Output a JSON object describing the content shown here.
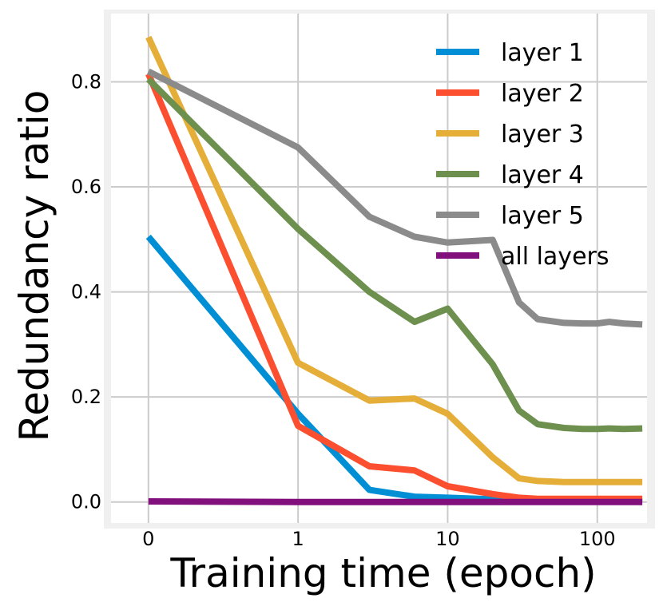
{
  "chart_data": {
    "type": "line",
    "title": "",
    "xlabel": "Training time (epoch)",
    "ylabel": "Redundancy ratio",
    "xscale": "symlog",
    "xlim": [
      -0.25,
      215
    ],
    "ylim": [
      -0.04,
      0.93
    ],
    "xticks": [
      {
        "value": 0,
        "label": "0"
      },
      {
        "value": 1,
        "label": "1"
      },
      {
        "value": 10,
        "label": "10"
      },
      {
        "value": 100,
        "label": "100"
      }
    ],
    "yticks": [
      {
        "value": 0.0,
        "label": "0.0"
      },
      {
        "value": 0.2,
        "label": "0.2"
      },
      {
        "value": 0.4,
        "label": "0.4"
      },
      {
        "value": 0.6,
        "label": "0.6"
      },
      {
        "value": 0.8,
        "label": "0.8"
      }
    ],
    "grid": true,
    "legend_position": "top-right",
    "series": [
      {
        "name": "layer 1",
        "color": "#008fd5",
        "x": [
          0,
          1,
          3,
          6,
          10,
          20,
          30,
          40,
          60,
          80,
          100,
          120,
          150,
          200
        ],
        "y": [
          0.505,
          0.168,
          0.023,
          0.01,
          0.008,
          0.005,
          0.003,
          0.003,
          0.003,
          0.003,
          0.003,
          0.003,
          0.003,
          0.003
        ]
      },
      {
        "name": "layer 2",
        "color": "#fc4f30",
        "x": [
          0,
          1,
          3,
          6,
          10,
          20,
          30,
          40,
          60,
          80,
          100,
          120,
          150,
          200
        ],
        "y": [
          0.815,
          0.145,
          0.068,
          0.06,
          0.03,
          0.015,
          0.008,
          0.006,
          0.006,
          0.006,
          0.006,
          0.006,
          0.006,
          0.006
        ]
      },
      {
        "name": "layer 3",
        "color": "#e5ae38",
        "x": [
          0,
          1,
          3,
          6,
          10,
          20,
          30,
          40,
          60,
          80,
          100,
          120,
          150,
          200
        ],
        "y": [
          0.885,
          0.265,
          0.193,
          0.197,
          0.168,
          0.085,
          0.045,
          0.04,
          0.038,
          0.038,
          0.038,
          0.038,
          0.038,
          0.038
        ]
      },
      {
        "name": "layer 4",
        "color": "#6d904f",
        "x": [
          0,
          1,
          3,
          6,
          10,
          20,
          30,
          40,
          60,
          80,
          100,
          120,
          150,
          200
        ],
        "y": [
          0.805,
          0.52,
          0.4,
          0.343,
          0.368,
          0.262,
          0.174,
          0.148,
          0.141,
          0.139,
          0.139,
          0.14,
          0.139,
          0.14
        ]
      },
      {
        "name": "layer 5",
        "color": "#8b8b8b",
        "x": [
          0,
          1,
          3,
          6,
          10,
          20,
          30,
          40,
          60,
          80,
          100,
          120,
          150,
          200
        ],
        "y": [
          0.82,
          0.675,
          0.543,
          0.505,
          0.494,
          0.499,
          0.38,
          0.348,
          0.341,
          0.34,
          0.34,
          0.343,
          0.34,
          0.338
        ]
      },
      {
        "name": "all layers",
        "color": "#810f7c",
        "x": [
          0,
          1,
          3,
          6,
          10,
          20,
          30,
          40,
          60,
          80,
          100,
          120,
          150,
          200
        ],
        "y": [
          0.001,
          0.0,
          0.0,
          0.0,
          0.0,
          0.0,
          0.0,
          0.0,
          0.0,
          0.0,
          0.0,
          0.0,
          0.0,
          0.0
        ]
      }
    ]
  }
}
